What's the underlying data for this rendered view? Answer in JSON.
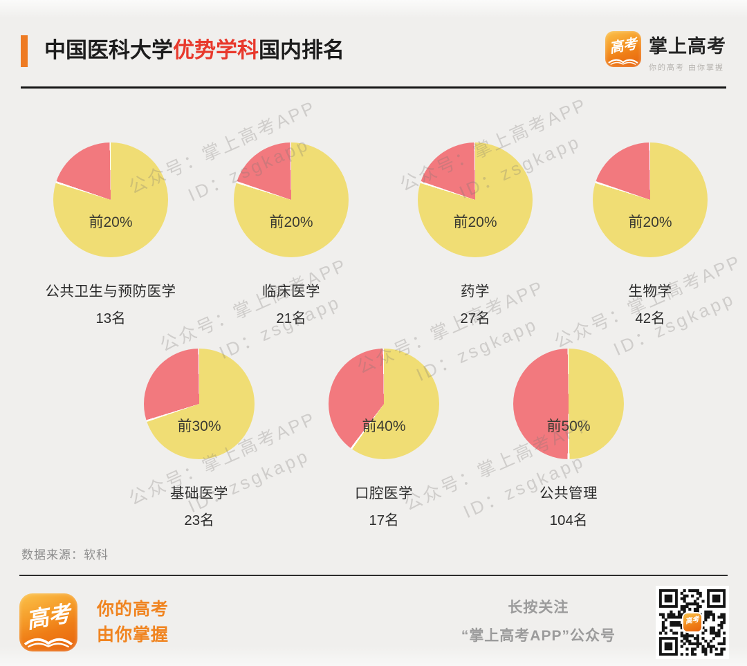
{
  "header": {
    "title_prefix": "中国医科大学",
    "title_highlight": "优势学科",
    "title_suffix": "国内排名",
    "logo": {
      "icon_text": "高考",
      "name": "掌上高考",
      "tagline": "你的高考 由你掌握"
    }
  },
  "colors": {
    "accent_orange": "#ee7b23",
    "highlight_red": "#e8392c",
    "background": "#f0efed",
    "footer_orange": "#f08420"
  },
  "chart_data": {
    "type": "pie",
    "title": "中国医科大学优势学科国内排名",
    "source": "软科",
    "legend_position": "none",
    "colors": {
      "top_slice": "#f2797e",
      "rest_slice": "#f0dd74",
      "label": "#3b3b32"
    },
    "series": [
      {
        "subject": "公共卫生与预防医学",
        "rank": 13,
        "rank_label": "13名",
        "tier_label": "前20%",
        "top_percent": 20,
        "slices": [
          20,
          80
        ]
      },
      {
        "subject": "临床医学",
        "rank": 21,
        "rank_label": "21名",
        "tier_label": "前20%",
        "top_percent": 20,
        "slices": [
          20,
          80
        ]
      },
      {
        "subject": "药学",
        "rank": 27,
        "rank_label": "27名",
        "tier_label": "前20%",
        "top_percent": 20,
        "slices": [
          20,
          80
        ]
      },
      {
        "subject": "生物学",
        "rank": 42,
        "rank_label": "42名",
        "tier_label": "前20%",
        "top_percent": 20,
        "slices": [
          20,
          80
        ]
      },
      {
        "subject": "基础医学",
        "rank": 23,
        "rank_label": "23名",
        "tier_label": "前30%",
        "top_percent": 30,
        "slices": [
          30,
          70
        ]
      },
      {
        "subject": "口腔医学",
        "rank": 17,
        "rank_label": "17名",
        "tier_label": "前40%",
        "top_percent": 40,
        "slices": [
          40,
          60
        ]
      },
      {
        "subject": "公共管理",
        "rank": 104,
        "rank_label": "104名",
        "tier_label": "前50%",
        "top_percent": 50,
        "slices": [
          50,
          50
        ]
      }
    ]
  },
  "watermark": {
    "line1": "公众号：掌上高考APP",
    "line2": "ID：zsgkapp"
  },
  "source_label": "数据来源：软科",
  "footer": {
    "slogan_line1": "你的高考",
    "slogan_line2": "由你掌握",
    "follow_line1": "长按关注",
    "follow_line2": "“掌上高考APP”公众号"
  }
}
